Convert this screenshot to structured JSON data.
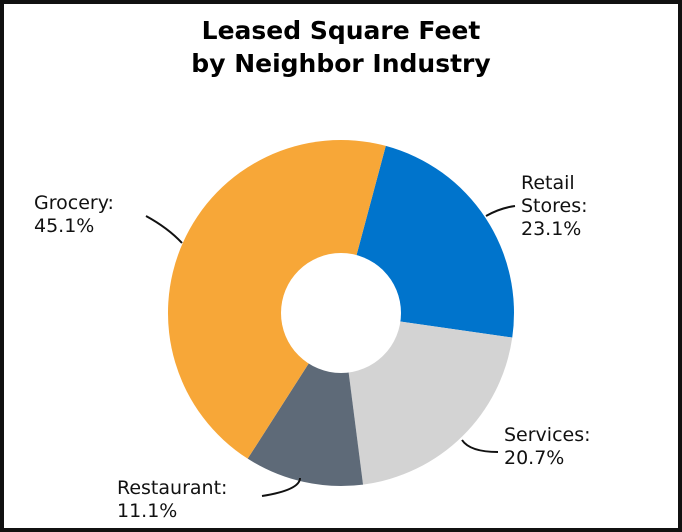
{
  "chart_data": {
    "type": "pie",
    "subtype": "donut",
    "title": "Leased Square Feet by Neighbor Industry",
    "title_lines": [
      "Leased Square Feet",
      "by Neighbor Industry"
    ],
    "start_angle_deg": 15,
    "direction": "clockwise",
    "categories": [
      "Retail Stores",
      "Services",
      "Restaurant",
      "Grocery"
    ],
    "values": [
      23.1,
      20.7,
      11.1,
      45.1
    ],
    "unit": "%",
    "colors": [
      "#0074CC",
      "#D3D3D3",
      "#5E6A78",
      "#F7A738"
    ],
    "labels": [
      {
        "lines": [
          "Retail",
          "Stores:",
          "23.1%"
        ]
      },
      {
        "lines": [
          "Services:",
          "20.7%"
        ]
      },
      {
        "lines": [
          "Restaurant:",
          "11.1%"
        ]
      },
      {
        "lines": [
          "Grocery:",
          "45.1%"
        ]
      }
    ],
    "legend": "none (data labels with leader lines)"
  }
}
